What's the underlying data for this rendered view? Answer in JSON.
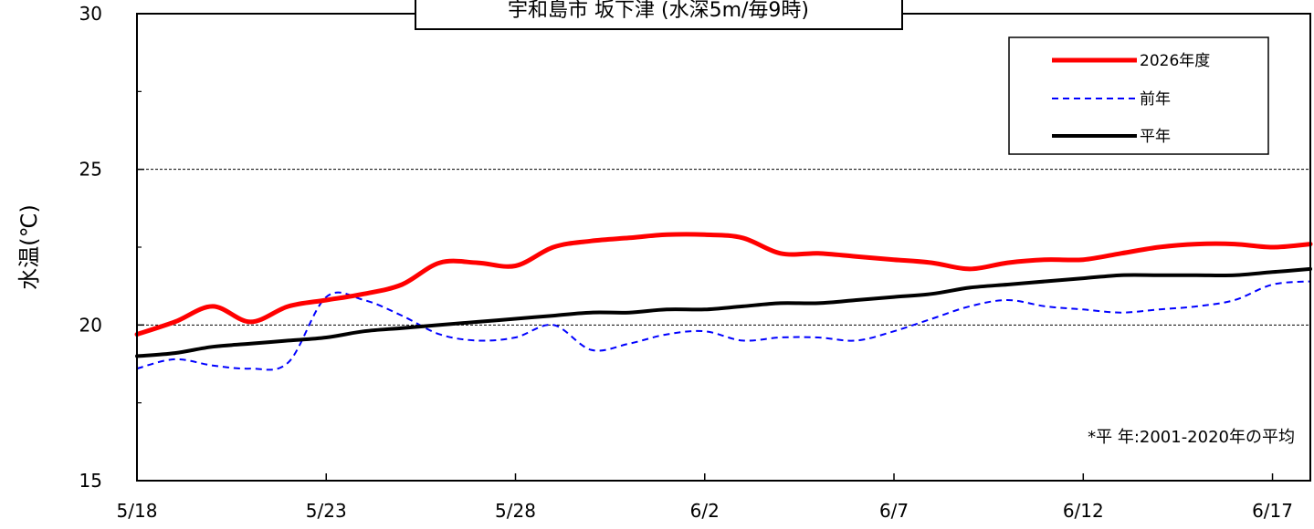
{
  "chart_data": {
    "type": "line",
    "title": "宇和島市 坂下津 (水深5m/毎9時)",
    "ylabel": "水温(℃)",
    "xlabel": "",
    "ylim": [
      15,
      30
    ],
    "y_ticks": [
      15,
      20,
      25,
      30
    ],
    "grid_y": [
      20,
      25
    ],
    "x_tick_labels": [
      "5/18",
      "5/23",
      "5/28",
      "6/2",
      "6/7",
      "6/12",
      "6/17"
    ],
    "x_dates": [
      "5/18",
      "5/19",
      "5/20",
      "5/21",
      "5/22",
      "5/23",
      "5/24",
      "5/25",
      "5/26",
      "5/27",
      "5/28",
      "5/29",
      "5/30",
      "5/31",
      "6/1",
      "6/2",
      "6/3",
      "6/4",
      "6/5",
      "6/6",
      "6/7",
      "6/8",
      "6/9",
      "6/10",
      "6/11",
      "6/12",
      "6/13",
      "6/14",
      "6/15",
      "6/16",
      "6/17",
      "6/18"
    ],
    "legend_position": "top-right",
    "note": "*平 年:2001-2020年の平均",
    "series": [
      {
        "name": "2026年度",
        "color": "#ff0000",
        "dash": "solid",
        "values": [
          19.7,
          20.1,
          20.6,
          20.1,
          20.6,
          20.8,
          21.0,
          21.3,
          22.0,
          22.0,
          21.9,
          22.5,
          22.7,
          22.8,
          22.9,
          22.9,
          22.8,
          22.3,
          22.3,
          22.2,
          22.1,
          22.0,
          21.8,
          22.0,
          22.1,
          22.1,
          22.3,
          22.5,
          22.6,
          22.6,
          22.5,
          22.6
        ]
      },
      {
        "name": "前年",
        "color": "#0000ff",
        "dash": "dashed",
        "values": [
          18.6,
          18.9,
          18.7,
          18.6,
          18.8,
          20.9,
          20.8,
          20.3,
          19.7,
          19.5,
          19.6,
          20.0,
          19.2,
          19.4,
          19.7,
          19.8,
          19.5,
          19.6,
          19.6,
          19.5,
          19.8,
          20.2,
          20.6,
          20.8,
          20.6,
          20.5,
          20.4,
          20.5,
          20.6,
          20.8,
          21.3,
          21.4
        ]
      },
      {
        "name": "平年",
        "color": "#000000",
        "dash": "solid",
        "values": [
          19.0,
          19.1,
          19.3,
          19.4,
          19.5,
          19.6,
          19.8,
          19.9,
          20.0,
          20.1,
          20.2,
          20.3,
          20.4,
          20.4,
          20.5,
          20.5,
          20.6,
          20.7,
          20.7,
          20.8,
          20.9,
          21.0,
          21.2,
          21.3,
          21.4,
          21.5,
          21.6,
          21.6,
          21.6,
          21.6,
          21.7,
          21.8
        ]
      }
    ]
  }
}
